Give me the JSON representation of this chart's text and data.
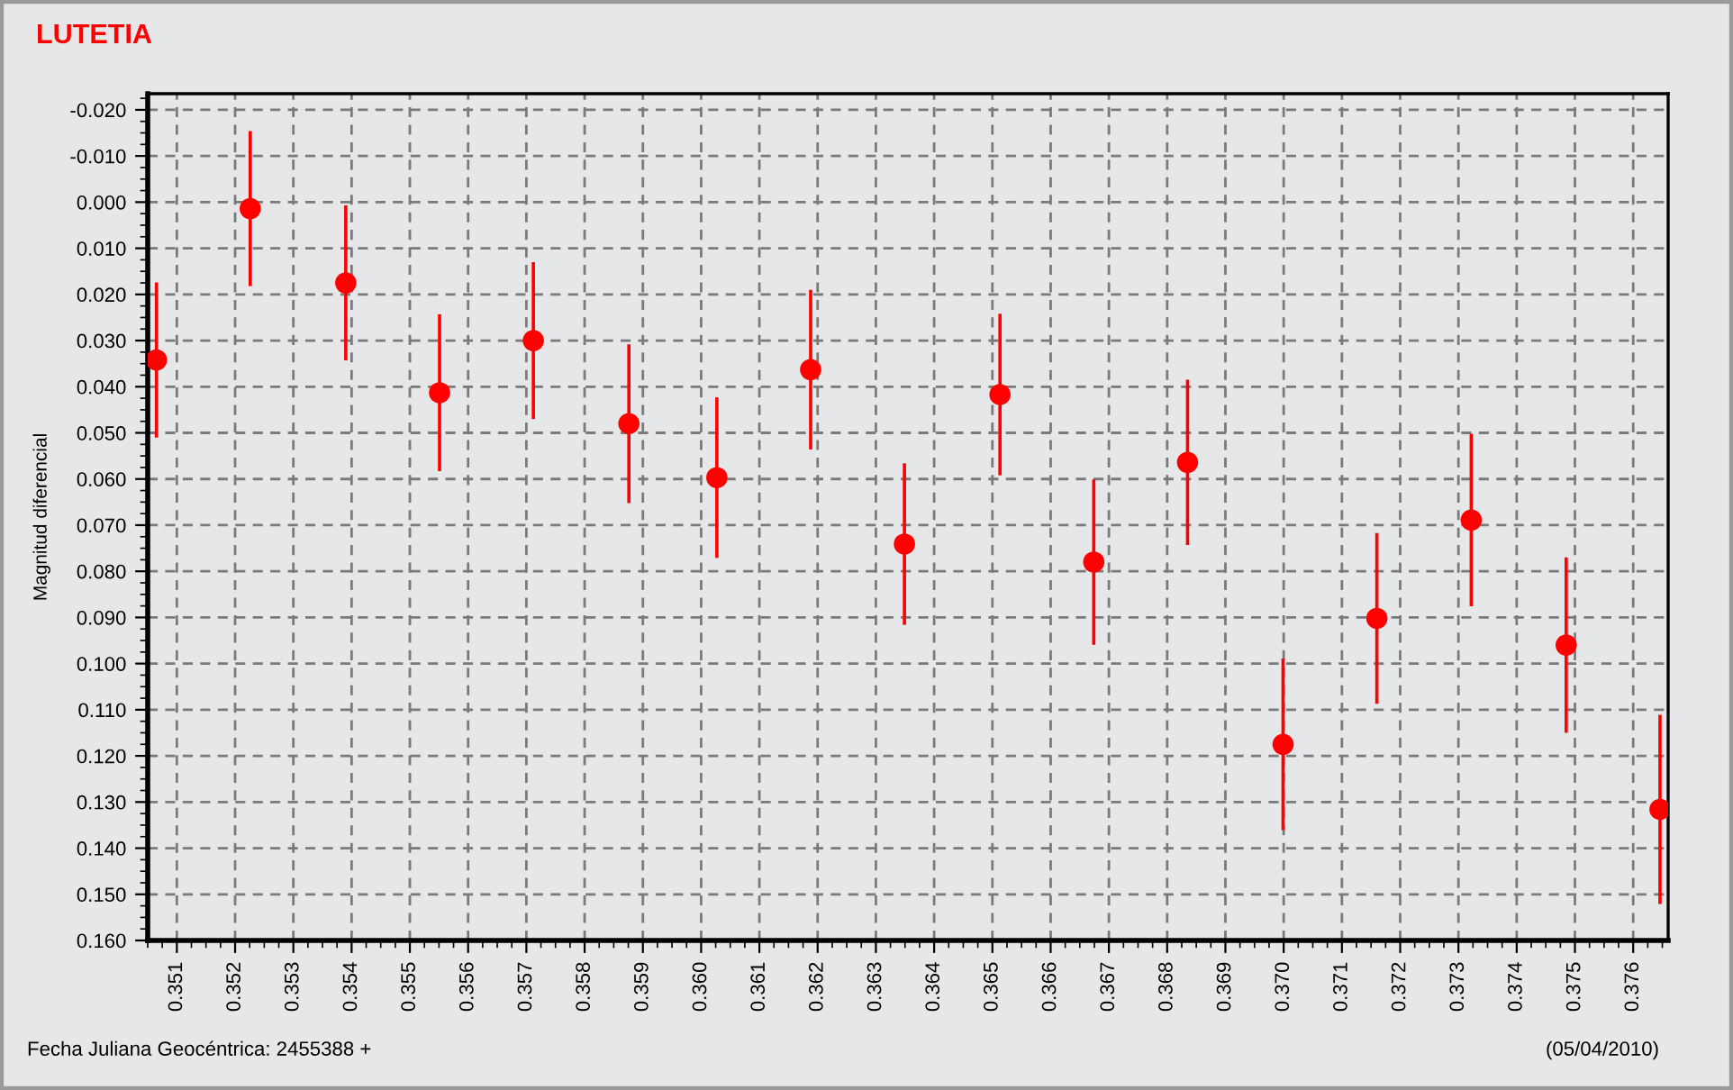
{
  "chart_data": {
    "type": "scatter",
    "title": "LUTETIA",
    "xlabel": "Fecha Juliana Geocéntrica: 2455388 +",
    "ylabel": "Magnitud diferencial",
    "annotations": [
      "(05/04/2010)"
    ],
    "x": [
      0.35065,
      0.35226,
      0.3539,
      0.35551,
      0.35712,
      0.35876,
      0.36027,
      0.36188,
      0.36349,
      0.36513,
      0.36674,
      0.36835,
      0.36999,
      0.3716,
      0.37322,
      0.37485,
      0.37646
    ],
    "series": [
      {
        "color": "#ff0000",
        "values": [
          0.0342,
          0.0014,
          0.0175,
          0.0413,
          0.03,
          0.048,
          0.0597,
          0.0363,
          0.0741,
          0.0417,
          0.078,
          0.0564,
          0.1175,
          0.0902,
          0.0689,
          0.096,
          0.1316
        ],
        "errors": [
          0.0168,
          0.0168,
          0.0168,
          0.017,
          0.017,
          0.0172,
          0.0174,
          0.0173,
          0.0175,
          0.0175,
          0.0179,
          0.0179,
          0.0186,
          0.0185,
          0.0187,
          0.019,
          0.0205
        ]
      }
    ],
    "xlim": [
      0.3505,
      0.3766
    ],
    "ylim": [
      0.16,
      -0.0235
    ],
    "xticks": [
      0.351,
      0.352,
      0.353,
      0.354,
      0.355,
      0.356,
      0.357,
      0.358,
      0.359,
      {
        "value": 0.36,
        "label": "0.360"
      },
      0.361,
      0.362,
      0.363,
      0.364,
      0.365,
      0.366,
      0.367,
      0.368,
      0.369,
      {
        "value": 0.37,
        "label": "0.370"
      },
      0.371,
      0.372,
      0.373,
      0.374,
      0.375,
      0.376
    ],
    "yticks": [
      {
        "value": -0.02,
        "label": "-0.020"
      },
      {
        "value": -0.01,
        "label": "-0.010"
      },
      {
        "value": 0.0,
        "label": "0.000"
      },
      {
        "value": 0.01,
        "label": "0.010"
      },
      {
        "value": 0.02,
        "label": "0.020"
      },
      {
        "value": 0.03,
        "label": "0.030"
      },
      {
        "value": 0.04,
        "label": "0.040"
      },
      {
        "value": 0.05,
        "label": "0.050"
      },
      {
        "value": 0.06,
        "label": "0.060"
      },
      {
        "value": 0.07,
        "label": "0.070"
      },
      {
        "value": 0.08,
        "label": "0.080"
      },
      {
        "value": 0.09,
        "label": "0.090"
      },
      {
        "value": 0.1,
        "label": "0.100"
      },
      {
        "value": 0.11,
        "label": "0.110"
      },
      {
        "value": 0.12,
        "label": "0.120"
      },
      {
        "value": 0.13,
        "label": "0.130"
      },
      {
        "value": 0.14,
        "label": "0.140"
      },
      {
        "value": 0.15,
        "label": "0.150"
      },
      {
        "value": 0.16,
        "label": "0.160"
      }
    ],
    "grid": true,
    "marker": "circle"
  }
}
